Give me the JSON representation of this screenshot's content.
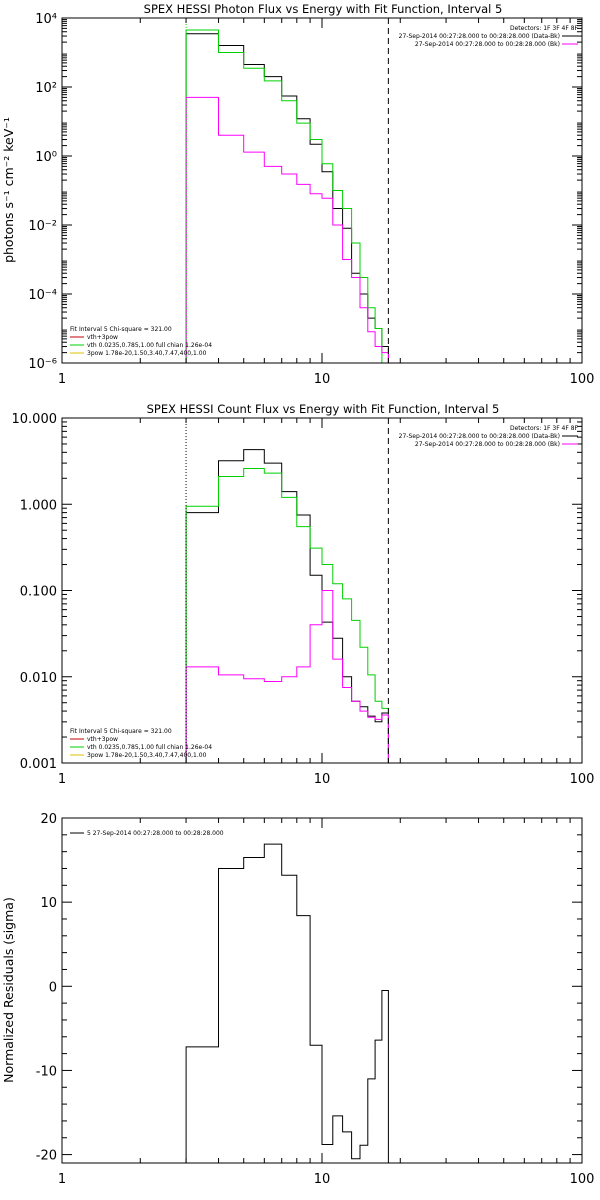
{
  "colors": {
    "data": "#000000",
    "total": "#00d000",
    "background": "#ff00ff",
    "component_vth": "#00d000",
    "component_pow": "#e0c000",
    "fit_combined": "#c00000"
  },
  "chart_data": [
    {
      "type": "line",
      "title": "SPEX HESSI Photon Flux vs Energy with Fit Function, Interval 5",
      "ylabel": "photons s⁻¹ cm⁻² keV⁻¹",
      "xlabel": "",
      "x_scale": "log",
      "y_scale": "log",
      "xlim": [
        1,
        100
      ],
      "ylim": [
        1e-06,
        10000
      ],
      "x_ticks": [
        1,
        10,
        100
      ],
      "x_tick_labels": [
        "1",
        "10",
        "100"
      ],
      "y_ticks": [
        1e-06,
        0.0001,
        0.01,
        1,
        100,
        10000
      ],
      "y_tick_labels": [
        "10⁻⁶",
        "10⁻⁴",
        "10⁻²",
        "10⁰",
        "10²",
        "10⁴"
      ],
      "edges": [
        3,
        4,
        5,
        6,
        7,
        8,
        9,
        10,
        11,
        12,
        13,
        14,
        15,
        16,
        17,
        18
      ],
      "series": [
        {
          "role": "data",
          "color": "black",
          "values": [
            3500,
            1600,
            450,
            200,
            55,
            12,
            2.2,
            0.35,
            0.03,
            0.008,
            0.0004,
            0.0001,
            2e-05,
            1e-05,
            3e-06
          ]
        },
        {
          "role": "model",
          "color": "green",
          "values": [
            4500,
            1000,
            350,
            150,
            40,
            9,
            3,
            0.6,
            0.1,
            0.03,
            0.003,
            0.0003,
            4e-05,
            1e-05,
            1e-06
          ]
        },
        {
          "role": "background",
          "color": "magenta",
          "values": [
            50,
            4,
            1.3,
            0.5,
            0.3,
            0.15,
            0.08,
            0.06,
            0.01,
            0.001,
            0.0003,
            4e-05,
            8e-06,
            3e-06,
            2e-06
          ]
        }
      ],
      "vlines": [
        {
          "x": 3,
          "style": "dotted",
          "color": "green"
        },
        {
          "x": 18,
          "style": "dashed",
          "color": "black"
        }
      ],
      "legend_top_right": {
        "line1": "Detectors: 1F 3F 4F 8F",
        "line2": "27-Sep-2014 00:27:28.000 to 00:28:28.000 (Data-Bk)",
        "line3": "27-Sep-2014 00:27:28.000 to 00:28:28.000 (Bk)"
      },
      "legend_bottom_left": {
        "line1": "Fit Interval 5   Chi-square = 321.00",
        "line2": "vth+3pow",
        "line3": "vth 0.0235,0.785,1.00  full chian 1.26e-04",
        "line4": "3pow 1.78e-20,1.50,3.40,7.47,400,1.00"
      }
    },
    {
      "type": "line",
      "title": "SPEX HESSI Count Flux vs Energy with Fit Function, Interval 5",
      "ylabel": "",
      "xlabel": "",
      "x_scale": "log",
      "y_scale": "log",
      "xlim": [
        1,
        100
      ],
      "ylim": [
        0.001,
        10
      ],
      "x_ticks": [
        1,
        10,
        100
      ],
      "x_tick_labels": [
        "1",
        "10",
        "100"
      ],
      "y_ticks": [
        0.001,
        0.01,
        0.1,
        1,
        10
      ],
      "y_tick_labels": [
        "0.001",
        "0.010",
        "0.100",
        "1.000",
        "10.000"
      ],
      "edges": [
        3,
        4,
        5,
        6,
        7,
        8,
        9,
        10,
        11,
        12,
        13,
        14,
        15,
        16,
        17,
        18,
        20
      ],
      "series": [
        {
          "role": "data",
          "color": "black",
          "values": [
            0.8,
            3.2,
            4.3,
            3.0,
            1.4,
            0.75,
            0.15,
            0.043,
            0.028,
            0.01,
            0.0052,
            0.0045,
            0.0035,
            0.003,
            0.0038,
            0.001
          ]
        },
        {
          "role": "model",
          "color": "green",
          "values": [
            0.95,
            2.1,
            2.6,
            2.3,
            1.2,
            0.55,
            0.31,
            0.2,
            0.12,
            0.08,
            0.045,
            0.022,
            0.0105,
            0.0052,
            0.0043,
            0.001
          ]
        },
        {
          "role": "background",
          "color": "magenta",
          "values": [
            0.013,
            0.0105,
            0.0095,
            0.0088,
            0.01,
            0.013,
            0.04,
            0.1,
            0.016,
            0.0075,
            0.0052,
            0.004,
            0.0034,
            0.0032,
            0.0036,
            0.001
          ]
        }
      ],
      "vlines": [
        {
          "x": 3,
          "style": "dotted",
          "color": "black"
        },
        {
          "x": 18,
          "style": "dashed",
          "color": "black"
        }
      ],
      "legend_top_right": {
        "line1": "Detectors: 1F 3F 4F 8F",
        "line2": "27-Sep-2014 00:27:28.000 to 00:28:28.000 (Data-Bk)",
        "line3": "27-Sep-2014 00:27:28.000 to 00:28:28.000 (Bk)"
      },
      "legend_bottom_left": {
        "line1": "Fit Interval 5   Chi-square = 321.00",
        "line2": "vth+3pow",
        "line3": "vth 0.0235,0.785,1.00  full chian 1.26e-04",
        "line4": "3pow 1.78e-20,1.50,3.40,7.47,400,1.00"
      }
    },
    {
      "type": "line",
      "title": "",
      "ylabel": "Normalized Residuals (sigma)",
      "xlabel": "",
      "x_scale": "log",
      "y_scale": "linear",
      "xlim": [
        1,
        100
      ],
      "ylim": [
        -21,
        20
      ],
      "x_ticks": [
        1,
        10,
        100
      ],
      "x_tick_labels": [
        "1",
        "10",
        "100"
      ],
      "y_ticks": [
        -20,
        -10,
        0,
        10,
        20
      ],
      "y_tick_labels": [
        "-20",
        "-10",
        "0",
        "10",
        "20"
      ],
      "edges": [
        3,
        4,
        5,
        6,
        7,
        8,
        9,
        10,
        11,
        12,
        13,
        14,
        15,
        16,
        17,
        18
      ],
      "series": [
        {
          "role": "residuals",
          "color": "black",
          "values": [
            -7.2,
            14.0,
            15.3,
            16.9,
            13.2,
            8.4,
            -7.0,
            -18.8,
            -15.4,
            -17.3,
            -20.5,
            -18.9,
            -11.0,
            -6.4,
            -0.5
          ]
        }
      ],
      "legend_top_left": "5  27-Sep-2014 00:27:28.000 to 00:28:28.000"
    }
  ]
}
